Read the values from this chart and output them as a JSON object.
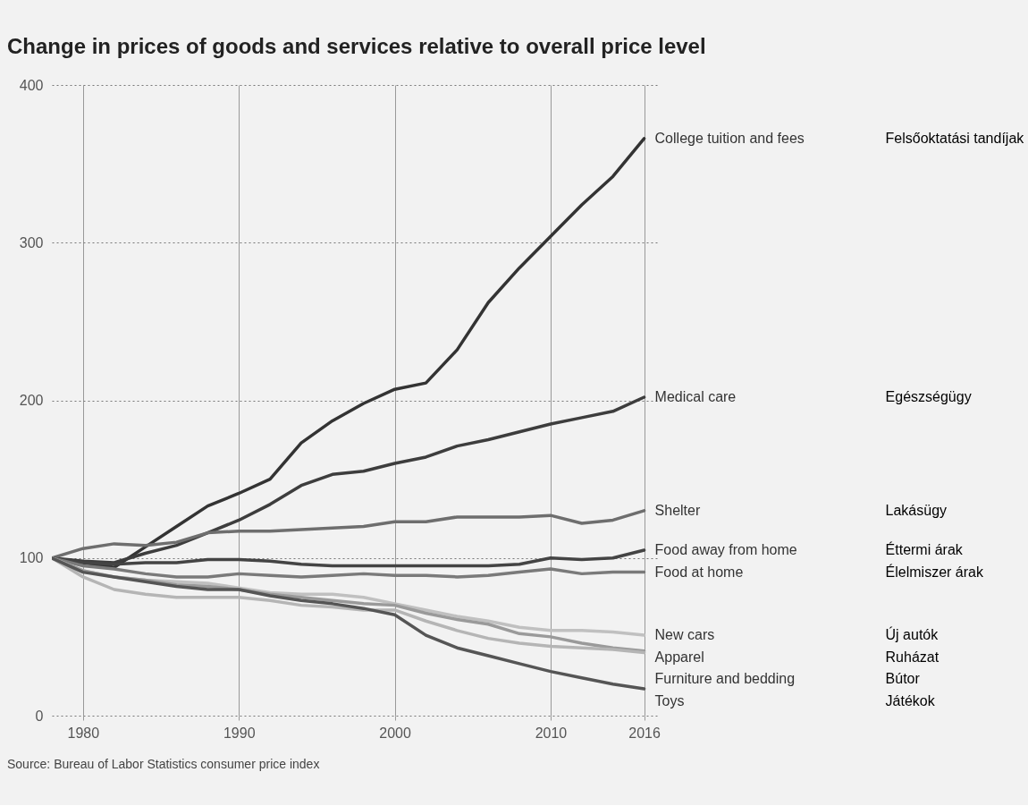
{
  "chart_data": {
    "type": "line",
    "title": "Change in prices of goods and services relative to overall price level",
    "x": [
      1978,
      1980,
      1982,
      1984,
      1986,
      1988,
      1990,
      1992,
      1994,
      1996,
      1998,
      2000,
      2002,
      2004,
      2006,
      2008,
      2010,
      2012,
      2014,
      2016
    ],
    "xlim": [
      1978,
      2017
    ],
    "xticks": [
      1980,
      1990,
      2000,
      2010,
      2016
    ],
    "ylim": [
      0,
      400
    ],
    "yticks": [
      0,
      100,
      200,
      300,
      400
    ],
    "grid": true,
    "legend": false,
    "series": [
      {
        "name": "College tuition and fees",
        "color": "#333333",
        "values": [
          100,
          97,
          94,
          107,
          120,
          133,
          141,
          150,
          173,
          187,
          198,
          207,
          211,
          232,
          262,
          284,
          304,
          324,
          342,
          366
        ]
      },
      {
        "name": "Medical care",
        "color": "#3d3d3d",
        "values": [
          100,
          98,
          97,
          103,
          108,
          116,
          124,
          134,
          146,
          153,
          155,
          160,
          164,
          171,
          175,
          180,
          185,
          189,
          193,
          202
        ]
      },
      {
        "name": "Shelter",
        "color": "#6e6e6e",
        "values": [
          100,
          106,
          109,
          108,
          110,
          116,
          117,
          117,
          118,
          119,
          120,
          123,
          123,
          126,
          126,
          126,
          127,
          122,
          124,
          130
        ]
      },
      {
        "name": "Food away from home",
        "color": "#444444",
        "values": [
          100,
          97,
          96,
          97,
          97,
          99,
          99,
          98,
          96,
          95,
          95,
          95,
          95,
          95,
          95,
          96,
          100,
          99,
          100,
          105
        ]
      },
      {
        "name": "Food at home",
        "color": "#7a7a7a",
        "values": [
          100,
          95,
          93,
          90,
          88,
          88,
          90,
          89,
          88,
          89,
          90,
          89,
          89,
          88,
          89,
          91,
          93,
          90,
          91,
          91
        ]
      },
      {
        "name": "New cars",
        "color": "#c0c0c0",
        "values": [
          100,
          92,
          88,
          86,
          85,
          84,
          81,
          78,
          77,
          77,
          75,
          71,
          67,
          63,
          60,
          56,
          54,
          54,
          53,
          51
        ]
      },
      {
        "name": "Apparel",
        "color": "#9a9a9a",
        "values": [
          100,
          92,
          88,
          86,
          83,
          82,
          80,
          77,
          75,
          73,
          71,
          70,
          65,
          61,
          58,
          52,
          50,
          46,
          43,
          41
        ]
      },
      {
        "name": "Furniture and bedding",
        "color": "#b5b5b5",
        "values": [
          100,
          88,
          80,
          77,
          75,
          75,
          75,
          73,
          70,
          69,
          67,
          67,
          60,
          54,
          49,
          46,
          44,
          43,
          42,
          40
        ]
      },
      {
        "name": "Toys",
        "color": "#555555",
        "values": [
          100,
          91,
          88,
          85,
          82,
          80,
          80,
          76,
          73,
          71,
          68,
          64,
          51,
          43,
          38,
          33,
          28,
          24,
          20,
          17
        ]
      }
    ],
    "annotations": [
      "Felsőoktatási tandíjak",
      "Egészségügy",
      "Lakásügy",
      "Éttermi árak",
      "Élelmiszer árak",
      "Új autók",
      "Ruházat",
      "Bútor",
      "Játékok",
      "Source: Bureau of Labor Statistics consumer price index"
    ]
  }
}
